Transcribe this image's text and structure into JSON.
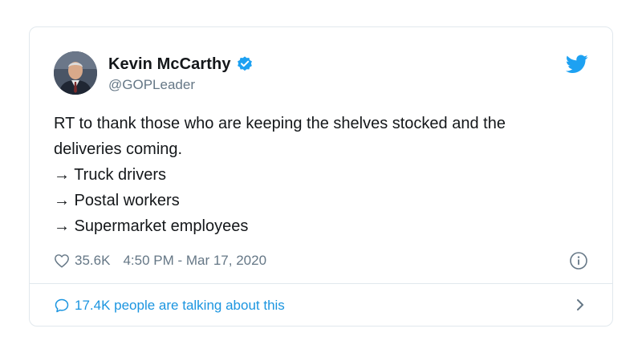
{
  "tweet": {
    "display_name": "Kevin McCarthy",
    "handle": "@GOPLeader",
    "verified": true,
    "avatar_icon": "profile-photo",
    "text_lines": [
      "RT to thank those who are keeping the shelves stocked and the",
      "deliveries coming.",
      "→ Truck drivers",
      "→ Postal workers",
      "→ Supermarket employees"
    ],
    "likes": "35.6K",
    "timestamp": "4:50 PM - Mar 17, 2020",
    "talking_text": "17.4K people are talking about this"
  },
  "icons": {
    "brand": "twitter-bird-icon",
    "like": "heart-icon",
    "info": "info-icon",
    "reply": "speech-bubble-icon",
    "more": "chevron-right-icon",
    "verified": "verified-badge-icon"
  },
  "colors": {
    "twitter_blue": "#1da1f2",
    "link_blue": "#1b95e0",
    "text": "#14171a",
    "muted": "#657786",
    "border": "#e1e8ed"
  }
}
